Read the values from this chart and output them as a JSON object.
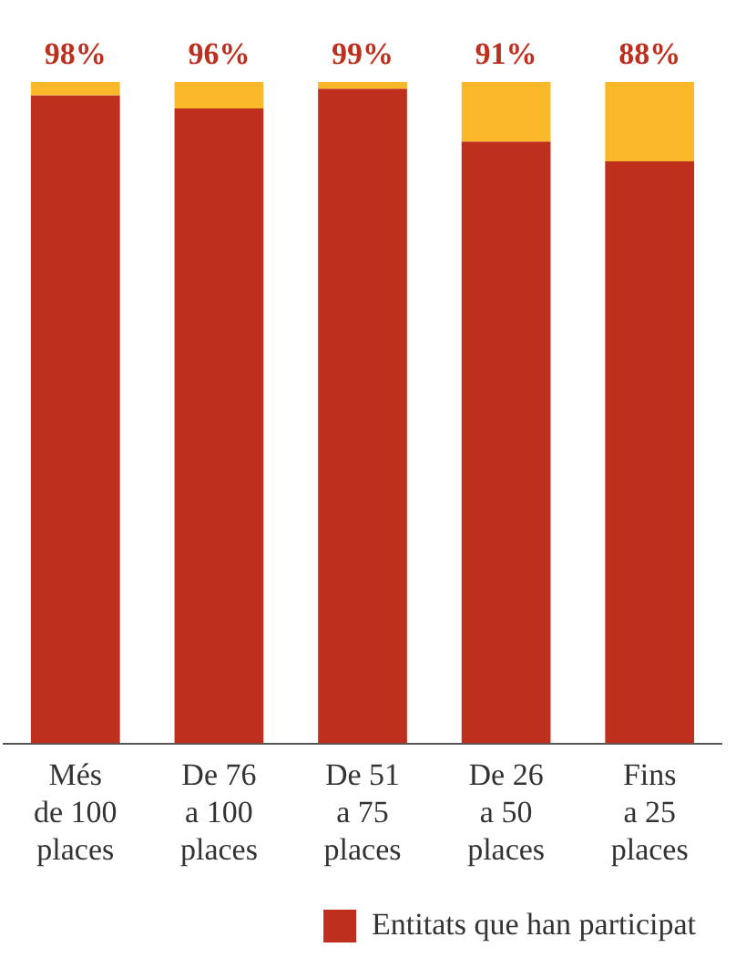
{
  "chart_data": {
    "type": "bar",
    "stacked": true,
    "categories": [
      "Més\nde 100\nplaces",
      "De 76\na 100\nplaces",
      "De 51\na 75\nplaces",
      "De 26\na 50\nplaces",
      "Fins\na 25\nplaces"
    ],
    "series": [
      {
        "name": "Entitats que han participat",
        "color": "#be2f1d",
        "values": [
          98,
          96,
          99,
          91,
          88
        ],
        "value_labels": [
          "98%",
          "96%",
          "99%",
          "91%",
          "88%"
        ]
      },
      {
        "color": "#fbb829",
        "values": [
          2,
          4,
          1,
          9,
          12
        ]
      }
    ],
    "ylim": [
      0,
      100
    ],
    "tick_labels": "x",
    "grid": false,
    "legend": "bottom right"
  }
}
